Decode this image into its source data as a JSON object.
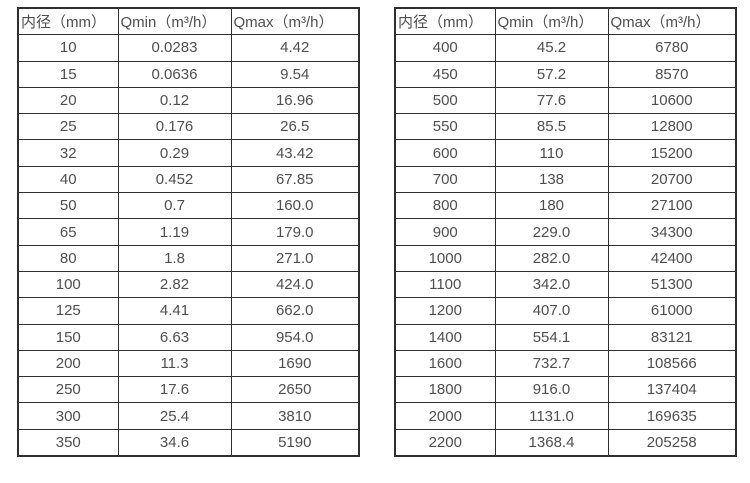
{
  "colors": {
    "border": "#2f2f2f",
    "text": "#4f4f4f",
    "background": "#ffffff"
  },
  "tables": [
    {
      "headers": [
        "内径（mm）",
        "Qmin（m³/h）",
        "Qmax（m³/h）"
      ],
      "rows": [
        [
          "10",
          "0.0283",
          "4.42"
        ],
        [
          "15",
          "0.0636",
          "9.54"
        ],
        [
          "20",
          "0.12",
          "16.96"
        ],
        [
          "25",
          "0.176",
          "26.5"
        ],
        [
          "32",
          "0.29",
          "43.42"
        ],
        [
          "40",
          "0.452",
          "67.85"
        ],
        [
          "50",
          "0.7",
          "160.0"
        ],
        [
          "65",
          "1.19",
          "179.0"
        ],
        [
          "80",
          "1.8",
          "271.0"
        ],
        [
          "100",
          "2.82",
          "424.0"
        ],
        [
          "125",
          "4.41",
          "662.0"
        ],
        [
          "150",
          "6.63",
          "954.0"
        ],
        [
          "200",
          "11.3",
          "1690"
        ],
        [
          "250",
          "17.6",
          "2650"
        ],
        [
          "300",
          "25.4",
          "3810"
        ],
        [
          "350",
          "34.6",
          "5190"
        ]
      ]
    },
    {
      "headers": [
        "内径（mm）",
        "Qmin（m³/h）",
        "Qmax（m³/h）"
      ],
      "rows": [
        [
          "400",
          "45.2",
          "6780"
        ],
        [
          "450",
          "57.2",
          "8570"
        ],
        [
          "500",
          "77.6",
          "10600"
        ],
        [
          "550",
          "85.5",
          "12800"
        ],
        [
          "600",
          "110",
          "15200"
        ],
        [
          "700",
          "138",
          "20700"
        ],
        [
          "800",
          "180",
          "27100"
        ],
        [
          "900",
          "229.0",
          "34300"
        ],
        [
          "1000",
          "282.0",
          "42400"
        ],
        [
          "1100",
          "342.0",
          "51300"
        ],
        [
          "1200",
          "407.0",
          "61000"
        ],
        [
          "1400",
          "554.1",
          "83121"
        ],
        [
          "1600",
          "732.7",
          "108566"
        ],
        [
          "1800",
          "916.0",
          "137404"
        ],
        [
          "2000",
          "1131.0",
          "169635"
        ],
        [
          "2200",
          "1368.4",
          "205258"
        ]
      ]
    }
  ]
}
